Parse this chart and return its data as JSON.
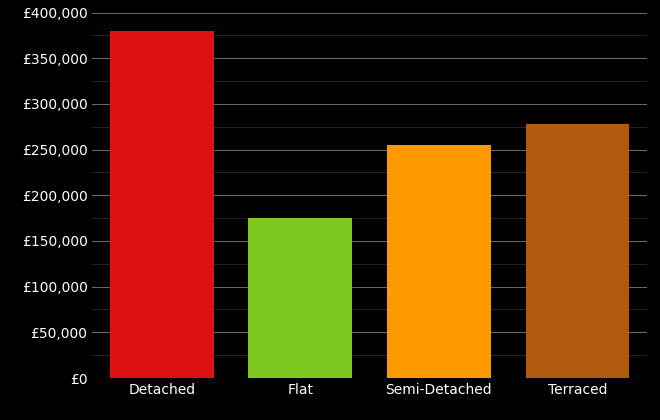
{
  "categories": [
    "Detached",
    "Flat",
    "Semi-Detached",
    "Terraced"
  ],
  "values": [
    380000,
    175000,
    255000,
    278000
  ],
  "bar_colors": [
    "#dd1111",
    "#7ec820",
    "#ff9900",
    "#b05a10"
  ],
  "background_color": "#000000",
  "text_color": "#ffffff",
  "major_grid_color": "#666666",
  "minor_grid_color": "#333333",
  "ylim": [
    0,
    400000
  ],
  "ytick_major_step": 50000,
  "ytick_minor_step": 25000,
  "bar_width": 0.75,
  "tick_labelsize": 10
}
